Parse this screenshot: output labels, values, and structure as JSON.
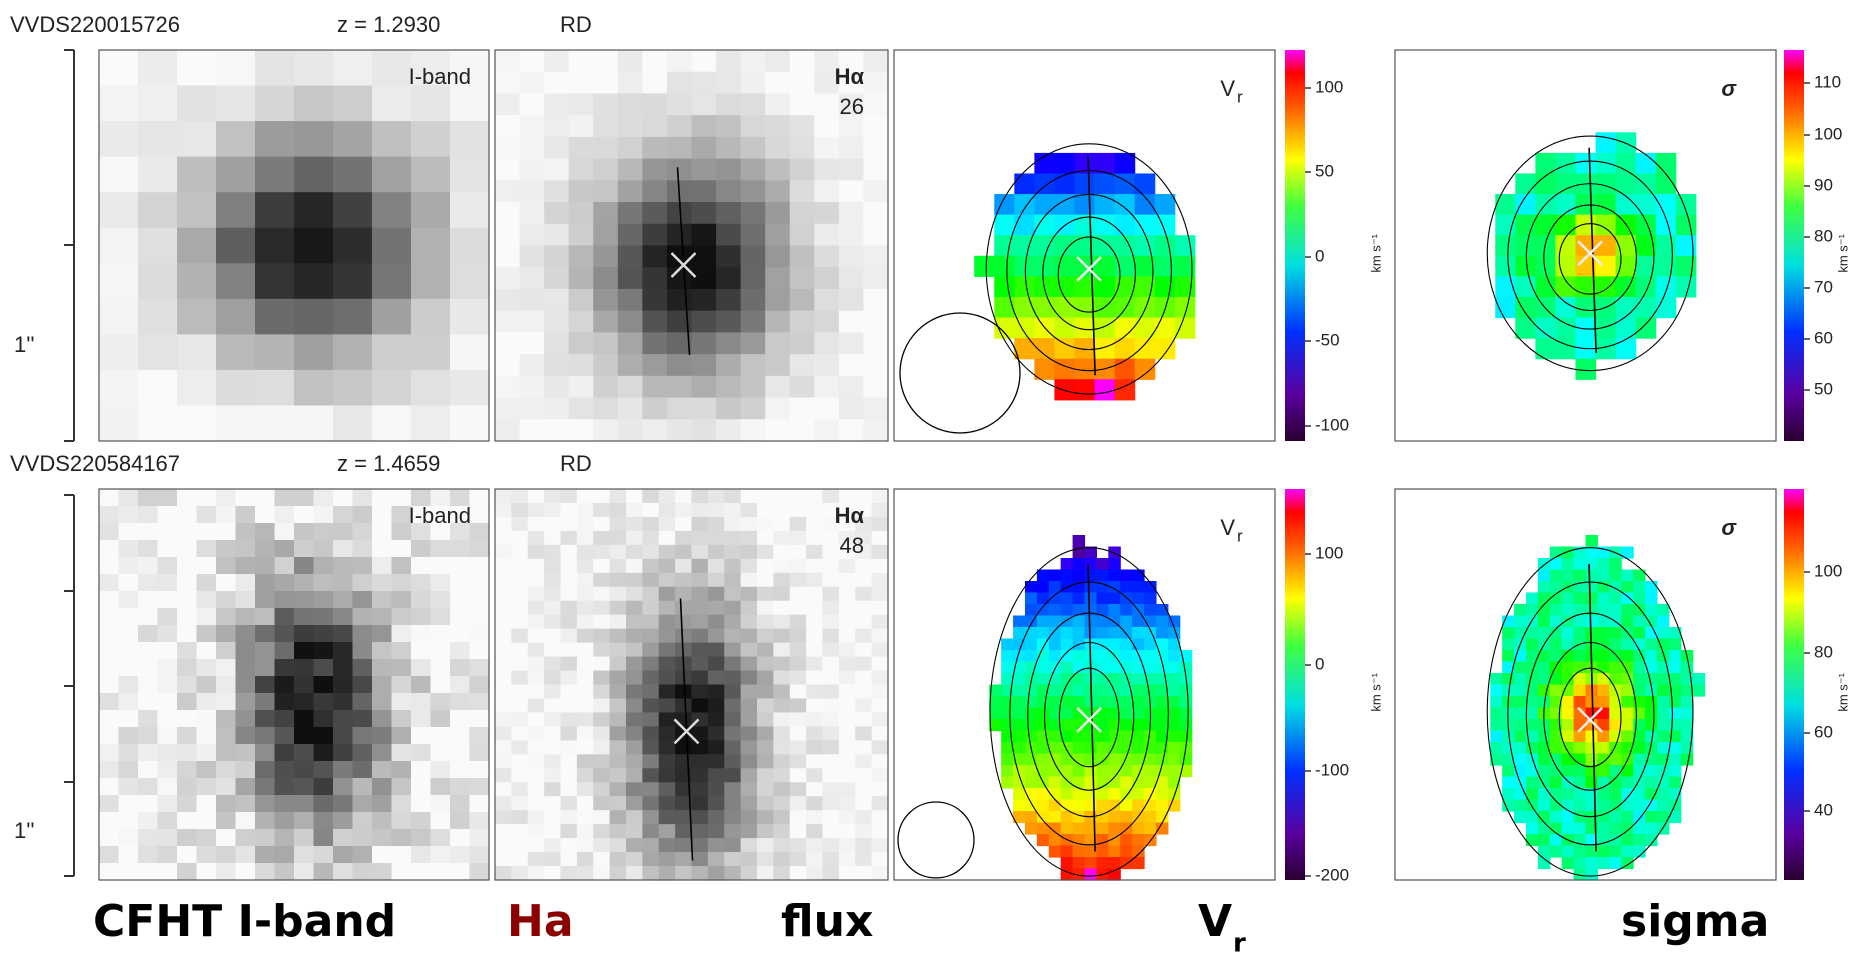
{
  "rows": [
    {
      "id": "VVDS220015726",
      "z": "z = 1.2930",
      "class": "RD",
      "scale": "1''",
      "iband_label": "I-band",
      "ha_label": "Hα",
      "ha_value": 26,
      "vr_label": "V",
      "vr_sub": "r",
      "sigma_label": "σ",
      "unit": "km s⁻¹",
      "vr_ticks": [
        100,
        50,
        0,
        -50,
        -100
      ],
      "sigma_ticks": [
        110,
        100,
        90,
        80,
        70,
        60,
        50
      ]
    },
    {
      "id": "VVDS220584167",
      "z": "z = 1.4659",
      "class": "RD",
      "scale": "1''",
      "iband_label": "I-band",
      "ha_label": "Hα",
      "ha_value": 48,
      "vr_label": "V",
      "vr_sub": "r",
      "sigma_label": "σ",
      "unit": "km s⁻¹",
      "vr_ticks": [
        100,
        0,
        -100,
        -200
      ],
      "sigma_ticks": [
        100,
        80,
        60,
        40
      ]
    }
  ],
  "footer": {
    "iband": "CFHT I-band",
    "ha": "Ha",
    "flux": "flux",
    "vr": "V",
    "vr_sub": "r",
    "sigma": "sigma"
  }
}
